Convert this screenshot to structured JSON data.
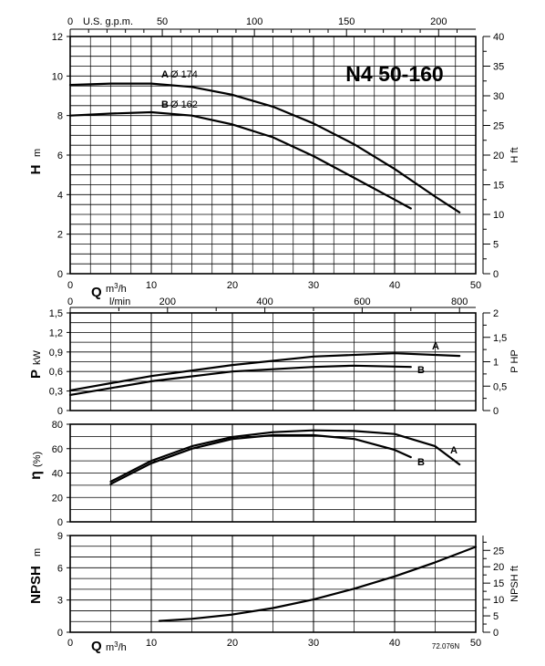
{
  "title": "N4 50-160",
  "code": "72.076N",
  "top_axis": {
    "label": "U.S. g.p.m.",
    "ticks": [
      "0",
      "50",
      "100",
      "150",
      "200"
    ],
    "values": [
      0,
      50,
      100,
      150,
      200
    ]
  },
  "lmin_axis": {
    "label": "l/min",
    "ticks": [
      "0",
      "200",
      "400",
      "600",
      "800"
    ],
    "values": [
      0,
      200,
      400,
      600,
      800
    ]
  },
  "q_axis": {
    "label": "Q",
    "unit": "m³/h",
    "ticks": [
      "0",
      "10",
      "20",
      "30",
      "40",
      "50"
    ],
    "values": [
      0,
      10,
      20,
      30,
      40,
      50
    ]
  },
  "chart_data": [
    {
      "type": "line",
      "panel": "head",
      "ylabel": "H",
      "yunit": "m",
      "ylim": [
        0,
        12
      ],
      "yticks": [
        "0",
        "2",
        "4",
        "6",
        "8",
        "10",
        "12"
      ],
      "y2label": "H ft",
      "y2lim": [
        0,
        40
      ],
      "y2ticks": [
        "0",
        "5",
        "10",
        "15",
        "20",
        "25",
        "30",
        "35",
        "40"
      ],
      "xlim": [
        0,
        50
      ],
      "series": [
        {
          "name": "A",
          "label_prefix": "A",
          "label_text": "Ø 174",
          "x": [
            0,
            5,
            10,
            15,
            20,
            25,
            30,
            35,
            40,
            45,
            48
          ],
          "y": [
            9.55,
            9.62,
            9.62,
            9.45,
            9.05,
            8.45,
            7.6,
            6.55,
            5.3,
            3.9,
            3.1
          ]
        },
        {
          "name": "B",
          "label_prefix": "B",
          "label_text": "Ø 162",
          "x": [
            0,
            5,
            10,
            15,
            20,
            25,
            30,
            35,
            40,
            42
          ],
          "y": [
            8.0,
            8.1,
            8.17,
            8.0,
            7.55,
            6.9,
            5.95,
            4.85,
            3.75,
            3.3
          ]
        }
      ]
    },
    {
      "type": "line",
      "panel": "power",
      "ylabel": "P",
      "yunit": "kW",
      "ylim": [
        0,
        1.5
      ],
      "yticks": [
        "0",
        "0,3",
        "0,6",
        "0,9",
        "1,2",
        "1,5"
      ],
      "y2label": "P HP",
      "y2lim": [
        0,
        2
      ],
      "y2ticks": [
        "0",
        "0,5",
        "1",
        "1,5",
        "2"
      ],
      "xlim": [
        0,
        50
      ],
      "series": [
        {
          "name": "A",
          "x": [
            0,
            10,
            20,
            30,
            40,
            48
          ],
          "y": [
            0.31,
            0.53,
            0.7,
            0.83,
            0.88,
            0.84
          ]
        },
        {
          "name": "B",
          "x": [
            0,
            10,
            20,
            30,
            35,
            42
          ],
          "y": [
            0.24,
            0.45,
            0.6,
            0.67,
            0.69,
            0.67
          ]
        }
      ]
    },
    {
      "type": "line",
      "panel": "efficiency",
      "ylabel": "η",
      "yunit": "(%)",
      "ylim": [
        0,
        80
      ],
      "yticks": [
        "0",
        "20",
        "40",
        "60",
        "80"
      ],
      "xlim": [
        0,
        50
      ],
      "series": [
        {
          "name": "A",
          "x": [
            5,
            10,
            15,
            20,
            25,
            30,
            35,
            40,
            45,
            48
          ],
          "y": [
            33,
            50,
            62,
            69.5,
            73.5,
            75,
            74.5,
            72,
            62,
            47
          ]
        },
        {
          "name": "B",
          "x": [
            5,
            10,
            15,
            20,
            25,
            30,
            35,
            40,
            42
          ],
          "y": [
            31,
            48,
            60,
            68,
            71,
            71,
            68,
            59,
            53
          ]
        }
      ]
    },
    {
      "type": "line",
      "panel": "npsh",
      "ylabel": "NPSH",
      "yunit": "m",
      "ylim": [
        0,
        9
      ],
      "yticks": [
        "0",
        "3",
        "6",
        "9"
      ],
      "y2label": "NPSH ft",
      "y2lim": [
        0,
        29.53
      ],
      "y2ticks": [
        "0",
        "5",
        "10",
        "15",
        "20",
        "25"
      ],
      "xlim": [
        0,
        50
      ],
      "series": [
        {
          "name": "",
          "x": [
            11,
            15,
            20,
            25,
            30,
            35,
            40,
            45,
            50
          ],
          "y": [
            1.05,
            1.25,
            1.65,
            2.25,
            3.05,
            4.05,
            5.2,
            6.5,
            7.95
          ]
        }
      ]
    }
  ]
}
